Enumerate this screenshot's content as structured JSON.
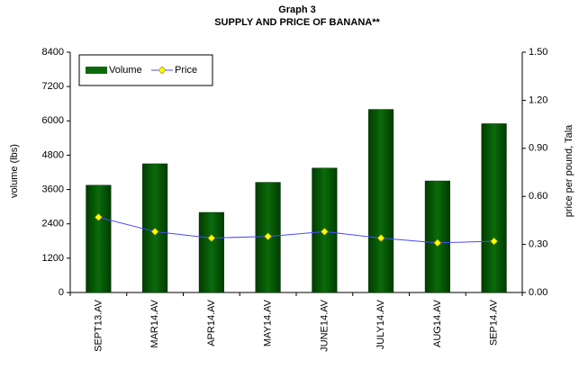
{
  "chart_data": {
    "type": "bar-line",
    "title": "Graph 3",
    "subtitle": "SUPPLY AND PRICE OF BANANA**",
    "y_label": "volume (lbs)",
    "y2_label": "price per pound, Tala",
    "categories": [
      "SEPT13.AV",
      "MAR14.AV",
      "APR14.AV",
      "MAY14.AV",
      "JUNE14.AV",
      "JULY14.AV",
      "AUG14.AV",
      "SEP14.AV"
    ],
    "series": [
      {
        "name": "Volume",
        "type": "bar",
        "color": "#0b6b0b",
        "values": [
          3750,
          4500,
          2800,
          3850,
          4350,
          6400,
          3900,
          5900
        ]
      },
      {
        "name": "Price",
        "type": "line",
        "axis": "y2",
        "color": "#4a4aff",
        "marker_color": "#ffff00",
        "values": [
          0.47,
          0.38,
          0.34,
          0.35,
          0.38,
          0.34,
          0.31,
          0.32
        ]
      }
    ],
    "ylim": [
      0,
      8400
    ],
    "yticks": [
      0,
      1200,
      2400,
      3600,
      4800,
      6000,
      7200,
      8400
    ],
    "y2lim": [
      0,
      1.5
    ],
    "y2ticks": [
      {
        "value": 0,
        "label": "0.00"
      },
      {
        "value": 0.3,
        "label": "0.30"
      },
      {
        "value": 0.6,
        "label": "0.60"
      },
      {
        "value": 0.9,
        "label": "0.90"
      },
      {
        "value": 1.2,
        "label": "1.20"
      },
      {
        "value": 1.5,
        "label": "1.50"
      }
    ],
    "legend": "top-left"
  }
}
